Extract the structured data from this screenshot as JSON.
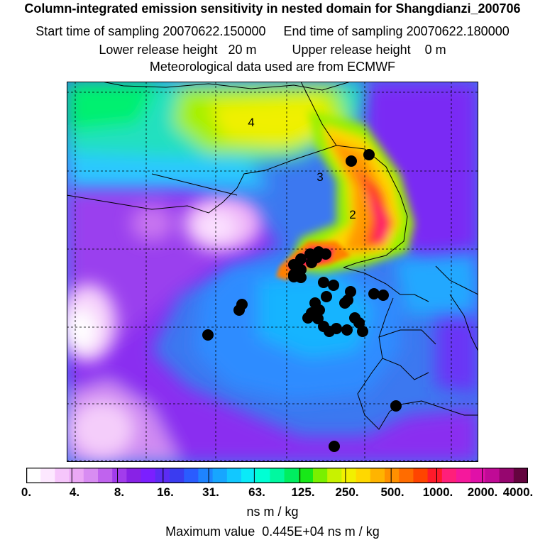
{
  "header": {
    "title": "Column-integrated emission sensitivity in nested domain for Shangdianzi_200706",
    "sampling_line": "Start time of sampling 20070622.150000     End time of sampling 20070622.180000",
    "release_line": "Lower release height   20 m          Upper release height    0 m",
    "met_line": "Meteorological data used are from ECMWF"
  },
  "map": {
    "contour_labels": [
      "4",
      "3",
      "2"
    ],
    "marker_color": "#000000",
    "grid_style": "dashed"
  },
  "colorbar": {
    "tick_labels": [
      "0.",
      "4.",
      "8.",
      "16.",
      "31.",
      "63.",
      "125.",
      "250.",
      "500.",
      "1000.",
      "2000.",
      "4000."
    ],
    "colors": [
      "#ffffff",
      "#fde8ff",
      "#f6c6fb",
      "#eba8f5",
      "#d88cf2",
      "#c063ee",
      "#a23cec",
      "#8822e6",
      "#7b1fff",
      "#5c2cf4",
      "#3a3cf0",
      "#2a5cff",
      "#1e84ff",
      "#17a6ff",
      "#12c8ff",
      "#0aeaf8",
      "#00ffd4",
      "#00f8a0",
      "#00ee60",
      "#18e818",
      "#7af000",
      "#c8f200",
      "#f2f000",
      "#ffd800",
      "#ffb400",
      "#ff9000",
      "#ff6c00",
      "#ff4400",
      "#ff1a2a",
      "#ff1f7a",
      "#f5189c",
      "#e010a8",
      "#c00a96",
      "#96066f",
      "#64043f"
    ],
    "units": "ns m / kg",
    "max_value_text": "Maximum value  0.445E+04 ns m / kg"
  }
}
